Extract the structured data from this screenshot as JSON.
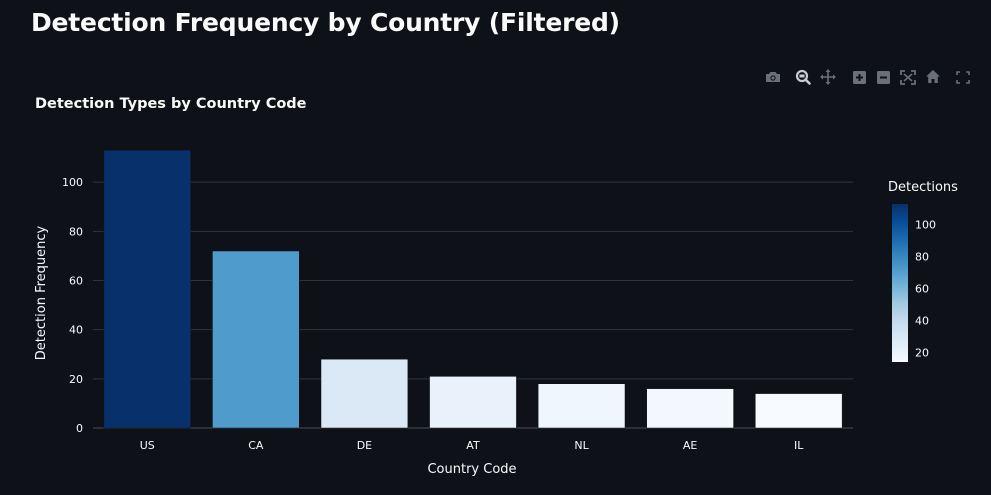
{
  "page": {
    "title": "Detection Frequency by Country (Filtered)"
  },
  "modebar": [
    {
      "name": "camera-icon",
      "label": "Download plot as a png"
    },
    {
      "name": "zoom-icon",
      "label": "Zoom"
    },
    {
      "name": "pan-icon",
      "label": "Pan"
    },
    {
      "name": "zoom-in-icon",
      "label": "Zoom in"
    },
    {
      "name": "zoom-out-icon",
      "label": "Zoom out"
    },
    {
      "name": "autoscale-icon",
      "label": "Autoscale"
    },
    {
      "name": "home-icon",
      "label": "Reset axes"
    },
    {
      "name": "fullscreen-icon",
      "label": "Fullscreen"
    }
  ],
  "colors": {
    "background": "#0e1117",
    "grid": "#31333f",
    "text": "#fafafa",
    "modebar_icon": "#6b6f78",
    "modebar_active": "#c9cbd0",
    "scale_low": "#f7fbff",
    "scale_high": "#08306b"
  },
  "chart_data": {
    "type": "bar",
    "title": "Detection Types by Country Code",
    "xlabel": "Country Code",
    "ylabel": "Detection Frequency",
    "categories": [
      "US",
      "CA",
      "DE",
      "AT",
      "NL",
      "AE",
      "IL"
    ],
    "values": [
      113,
      72,
      28,
      21,
      18,
      16,
      14
    ],
    "ylim": [
      0,
      120
    ],
    "yticks": [
      0,
      20,
      40,
      60,
      80,
      100
    ],
    "grid": true,
    "colorscale": "Blues",
    "colorbar": {
      "title": "Detections",
      "range": [
        14,
        113
      ],
      "ticks": [
        20,
        40,
        60,
        80,
        100
      ]
    }
  }
}
